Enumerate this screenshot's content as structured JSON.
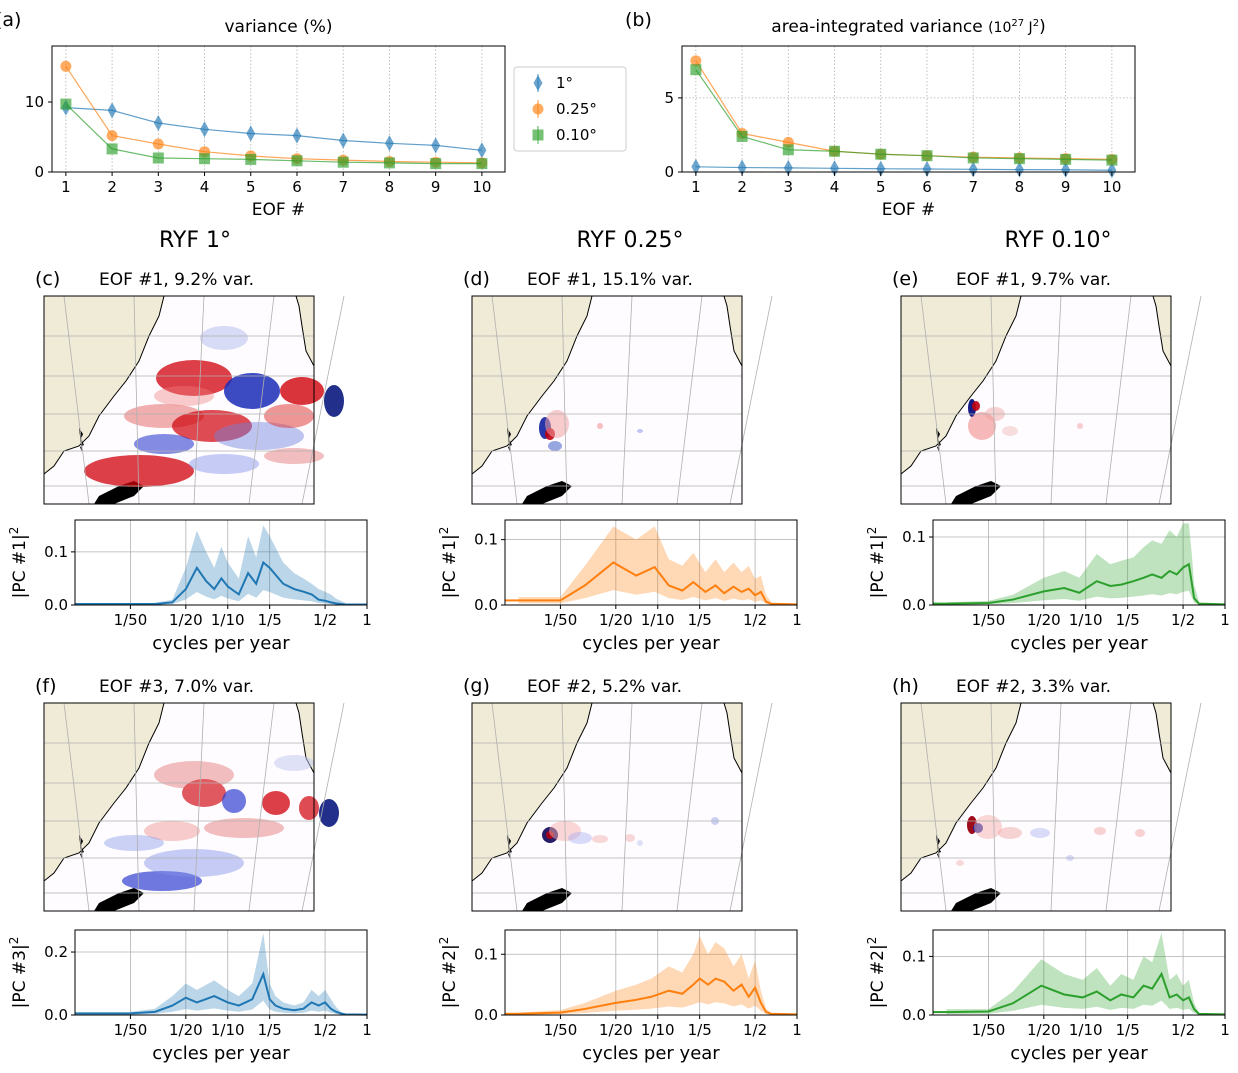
{
  "colors": {
    "c1": "#1f77b4",
    "c025": "#ff7f0e",
    "c010": "#2ca02c",
    "land": "#efebd6",
    "grid": "#b0b0b0"
  },
  "headers": {
    "c1": "RYF 1°",
    "c025": "RYF 0.25°",
    "c010": "RYF 0.10°"
  },
  "chart_data": [
    {
      "panel": "(a)",
      "type": "scatter",
      "title": "variance (%)",
      "xlabel": "EOF #",
      "ylabel": "",
      "x": [
        1,
        2,
        3,
        4,
        5,
        6,
        7,
        8,
        9,
        10
      ],
      "xlim": [
        0.7,
        10.5
      ],
      "ylim": [
        0,
        18
      ],
      "xticks": [
        1,
        2,
        3,
        4,
        5,
        6,
        7,
        8,
        9,
        10
      ],
      "yticks": [
        0,
        10
      ],
      "grid": "vertical-dotted",
      "series": [
        {
          "name": "1°",
          "color": "#1f77b4",
          "marker": "thin_diamond",
          "values": [
            9.2,
            8.8,
            7.0,
            6.1,
            5.5,
            5.2,
            4.5,
            4.1,
            3.8,
            3.1
          ]
        },
        {
          "name": "0.25°",
          "color": "#ff7f0e",
          "marker": "circle",
          "values": [
            15.1,
            5.2,
            4.0,
            2.9,
            2.3,
            1.9,
            1.7,
            1.5,
            1.4,
            1.3
          ]
        },
        {
          "name": "0.10°",
          "color": "#2ca02c",
          "marker": "square",
          "values": [
            9.7,
            3.3,
            2.0,
            1.9,
            1.8,
            1.6,
            1.4,
            1.3,
            1.2,
            1.2
          ]
        }
      ]
    },
    {
      "panel": "(b)",
      "type": "scatter",
      "title": "area-integrated variance",
      "title_unit": "(10",
      "title_exp": "27",
      "title_unit2": " J",
      "title_exp2": "2",
      "title_end": ")",
      "xlabel": "EOF #",
      "ylabel": "",
      "x": [
        1,
        2,
        3,
        4,
        5,
        6,
        7,
        8,
        9,
        10
      ],
      "xlim": [
        0.7,
        10.5
      ],
      "ylim": [
        0,
        8.5
      ],
      "xticks": [
        1,
        2,
        3,
        4,
        5,
        6,
        7,
        8,
        9,
        10
      ],
      "yticks": [
        0,
        5
      ],
      "grid": "both-dotted",
      "series": [
        {
          "name": "1°",
          "color": "#1f77b4",
          "marker": "thin_diamond",
          "values": [
            0.35,
            0.3,
            0.28,
            0.25,
            0.22,
            0.2,
            0.18,
            0.16,
            0.15,
            0.12
          ]
        },
        {
          "name": "0.25°",
          "color": "#ff7f0e",
          "marker": "circle",
          "values": [
            7.5,
            2.6,
            2.0,
            1.4,
            1.2,
            1.1,
            1.0,
            0.95,
            0.9,
            0.85
          ]
        },
        {
          "name": "0.10°",
          "color": "#2ca02c",
          "marker": "square",
          "values": [
            6.9,
            2.4,
            1.5,
            1.4,
            1.2,
            1.1,
            0.95,
            0.9,
            0.85,
            0.8
          ]
        }
      ]
    }
  ],
  "legend": [
    {
      "label": "1°",
      "color": "#1f77b4",
      "marker": "thin_diamond"
    },
    {
      "label": "0.25°",
      "color": "#ff7f0e",
      "marker": "circle"
    },
    {
      "label": "0.10°",
      "color": "#2ca02c",
      "marker": "square"
    }
  ],
  "map_panels": [
    {
      "panel": "(c)",
      "title": "EOF #1, 9.2% var.",
      "style": "c1a"
    },
    {
      "panel": "(d)",
      "title": "EOF #1, 15.1% var.",
      "style": "c025a"
    },
    {
      "panel": "(e)",
      "title": "EOF #1, 9.7% var.",
      "style": "c010a"
    },
    {
      "panel": "(f)",
      "title": "EOF #3, 7.0% var.",
      "style": "c1b"
    },
    {
      "panel": "(g)",
      "title": "EOF #2, 5.2% var.",
      "style": "c025b"
    },
    {
      "panel": "(h)",
      "title": "EOF #2, 3.3% var.",
      "style": "c010b"
    }
  ],
  "spectra": [
    {
      "panel": "c",
      "pc": "1",
      "color": "#1f77b4",
      "ylim": [
        0,
        0.16
      ],
      "yticks": [
        "0.0",
        "0.1"
      ],
      "ytickvals": [
        0,
        0.1
      ],
      "x": [
        0.02,
        0.03,
        0.04,
        0.05,
        0.06,
        0.07,
        0.08,
        0.09,
        0.1,
        0.12,
        0.14,
        0.16,
        0.18,
        0.2,
        0.25,
        0.3,
        0.35,
        0.4,
        0.45,
        0.5,
        0.55,
        0.6,
        0.65,
        0.7
      ],
      "y": [
        0.002,
        0.002,
        0.005,
        0.03,
        0.07,
        0.045,
        0.03,
        0.05,
        0.035,
        0.02,
        0.06,
        0.04,
        0.08,
        0.07,
        0.04,
        0.03,
        0.025,
        0.02,
        0.01,
        0.008,
        0.005,
        0.003,
        0.002,
        0.001
      ],
      "hi": [
        0.003,
        0.004,
        0.01,
        0.07,
        0.14,
        0.1,
        0.07,
        0.11,
        0.08,
        0.05,
        0.13,
        0.09,
        0.15,
        0.13,
        0.08,
        0.06,
        0.05,
        0.04,
        0.03,
        0.025,
        0.02,
        0.012,
        0.008,
        0.004
      ]
    },
    {
      "panel": "d",
      "pc": "1",
      "color": "#ff7f0e",
      "ylim": [
        0,
        0.13
      ],
      "yticks": [
        "0.0",
        "0.1"
      ],
      "ytickvals": [
        0,
        0.1
      ],
      "x": [
        0.01,
        0.02,
        0.03,
        0.048,
        0.07,
        0.095,
        0.12,
        0.15,
        0.18,
        0.22,
        0.26,
        0.3,
        0.35,
        0.4,
        0.45,
        0.5,
        0.55,
        0.6,
        0.65
      ],
      "y": [
        0.007,
        0.007,
        0.03,
        0.065,
        0.045,
        0.058,
        0.03,
        0.022,
        0.035,
        0.02,
        0.03,
        0.018,
        0.028,
        0.02,
        0.025,
        0.015,
        0.02,
        0.005,
        0.002
      ],
      "hi": [
        0.012,
        0.012,
        0.06,
        0.12,
        0.1,
        0.12,
        0.07,
        0.06,
        0.08,
        0.05,
        0.07,
        0.05,
        0.065,
        0.05,
        0.06,
        0.04,
        0.045,
        0.015,
        0.005
      ]
    },
    {
      "panel": "e",
      "pc": "1",
      "color": "#2ca02c",
      "ylim": [
        0,
        0.125
      ],
      "yticks": [
        "0.0",
        "0.1"
      ],
      "ytickvals": [
        0,
        0.1
      ],
      "x": [
        0.01,
        0.02,
        0.03,
        0.05,
        0.07,
        0.09,
        0.12,
        0.15,
        0.18,
        0.22,
        0.26,
        0.3,
        0.35,
        0.4,
        0.45,
        0.5,
        0.55,
        0.58,
        0.6,
        0.65
      ],
      "y": [
        0.002,
        0.003,
        0.008,
        0.02,
        0.025,
        0.018,
        0.035,
        0.028,
        0.03,
        0.035,
        0.04,
        0.045,
        0.04,
        0.05,
        0.045,
        0.055,
        0.06,
        0.03,
        0.01,
        0.002
      ],
      "hi": [
        0.004,
        0.006,
        0.015,
        0.04,
        0.05,
        0.04,
        0.075,
        0.06,
        0.065,
        0.07,
        0.085,
        0.095,
        0.09,
        0.11,
        0.1,
        0.12,
        0.12,
        0.07,
        0.03,
        0.005
      ]
    },
    {
      "panel": "f",
      "pc": "3",
      "color": "#1f77b4",
      "ylim": [
        0,
        0.27
      ],
      "yticks": [
        "0.0",
        "0.2"
      ],
      "ytickvals": [
        0,
        0.2
      ],
      "x": [
        0.02,
        0.03,
        0.04,
        0.05,
        0.06,
        0.08,
        0.1,
        0.12,
        0.15,
        0.18,
        0.2,
        0.22,
        0.25,
        0.3,
        0.35,
        0.4,
        0.45,
        0.5,
        0.55,
        0.6,
        0.65,
        0.7
      ],
      "y": [
        0.005,
        0.01,
        0.03,
        0.055,
        0.04,
        0.06,
        0.04,
        0.03,
        0.05,
        0.13,
        0.05,
        0.03,
        0.02,
        0.015,
        0.02,
        0.04,
        0.03,
        0.04,
        0.02,
        0.01,
        0.005,
        0.002
      ],
      "hi": [
        0.01,
        0.02,
        0.06,
        0.1,
        0.08,
        0.11,
        0.08,
        0.06,
        0.1,
        0.26,
        0.1,
        0.06,
        0.04,
        0.03,
        0.04,
        0.08,
        0.06,
        0.08,
        0.05,
        0.025,
        0.01,
        0.004
      ]
    },
    {
      "panel": "g",
      "pc": "2",
      "color": "#ff7f0e",
      "ylim": [
        0,
        0.14
      ],
      "yticks": [
        "0.0",
        "0.1"
      ],
      "ytickvals": [
        0,
        0.1
      ],
      "x": [
        0.01,
        0.02,
        0.03,
        0.05,
        0.07,
        0.09,
        0.12,
        0.15,
        0.18,
        0.2,
        0.23,
        0.26,
        0.3,
        0.35,
        0.4,
        0.45,
        0.5,
        0.55,
        0.6,
        0.65
      ],
      "y": [
        0.002,
        0.004,
        0.01,
        0.02,
        0.025,
        0.03,
        0.04,
        0.035,
        0.05,
        0.06,
        0.05,
        0.06,
        0.055,
        0.04,
        0.05,
        0.03,
        0.045,
        0.02,
        0.005,
        0.002
      ],
      "hi": [
        0.004,
        0.008,
        0.02,
        0.04,
        0.05,
        0.06,
        0.08,
        0.07,
        0.1,
        0.13,
        0.1,
        0.12,
        0.11,
        0.08,
        0.1,
        0.06,
        0.09,
        0.04,
        0.01,
        0.004
      ]
    },
    {
      "panel": "h",
      "pc": "2",
      "color": "#2ca02c",
      "ylim": [
        0,
        0.145
      ],
      "yticks": [
        "0.0",
        "0.1"
      ],
      "ytickvals": [
        0,
        0.1
      ],
      "x": [
        0.01,
        0.02,
        0.03,
        0.048,
        0.07,
        0.095,
        0.12,
        0.15,
        0.18,
        0.22,
        0.26,
        0.3,
        0.35,
        0.4,
        0.45,
        0.5,
        0.55,
        0.6,
        0.65
      ],
      "y": [
        0.005,
        0.006,
        0.02,
        0.05,
        0.035,
        0.03,
        0.04,
        0.025,
        0.035,
        0.03,
        0.05,
        0.045,
        0.07,
        0.03,
        0.035,
        0.025,
        0.03,
        0.01,
        0.002
      ],
      "hi": [
        0.01,
        0.01,
        0.04,
        0.095,
        0.07,
        0.06,
        0.08,
        0.05,
        0.07,
        0.06,
        0.1,
        0.09,
        0.14,
        0.06,
        0.07,
        0.05,
        0.06,
        0.02,
        0.004
      ]
    }
  ],
  "spectrum_axis": {
    "xlabel": "cycles per year",
    "xticks": [
      {
        "v": 0.02,
        "t": "1/50"
      },
      {
        "v": 0.05,
        "t": "1/20"
      },
      {
        "v": 0.1,
        "t": "1/10"
      },
      {
        "v": 0.2,
        "t": "1/5"
      },
      {
        "v": 0.5,
        "t": "1/2"
      },
      {
        "v": 1,
        "t": "1"
      }
    ]
  }
}
